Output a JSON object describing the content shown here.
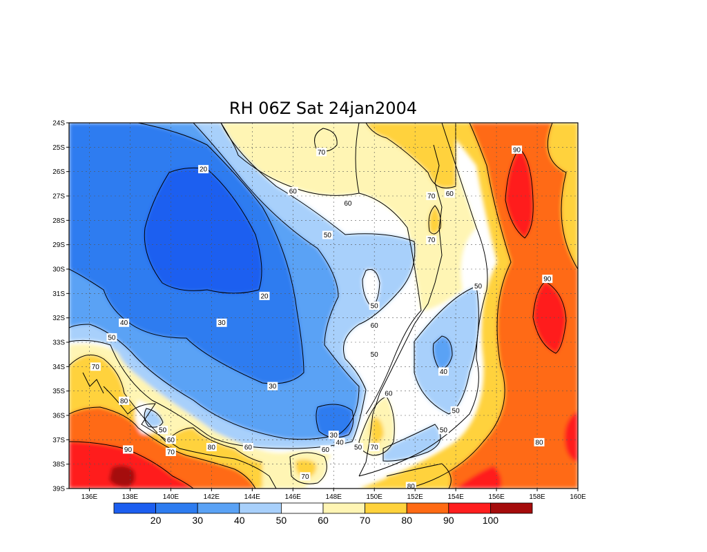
{
  "chart_data": {
    "type": "heatmap",
    "title": "RH 06Z Sat 24jan2004",
    "x_ticks": [
      "136E",
      "138E",
      "140E",
      "142E",
      "144E",
      "146E",
      "148E",
      "150E",
      "152E",
      "154E",
      "156E",
      "158E",
      "160E"
    ],
    "y_ticks": [
      "24S",
      "25S",
      "26S",
      "27S",
      "28S",
      "29S",
      "30S",
      "31S",
      "32S",
      "33S",
      "34S",
      "35S",
      "36S",
      "37S",
      "38S",
      "39S"
    ],
    "xlim": [
      135,
      160
    ],
    "ylim": [
      -39,
      -24
    ],
    "grid": true,
    "levels": [
      20,
      30,
      40,
      50,
      60,
      70,
      80,
      90,
      100
    ],
    "colorbar_labels": [
      "20",
      "30",
      "40",
      "50",
      "60",
      "70",
      "80",
      "90",
      "100"
    ],
    "bin_colors": [
      "#1c5ef0",
      "#2d7cf0",
      "#5aa2f5",
      "#a8d0fb",
      "#ffffff",
      "#fff5b4",
      "#ffd23c",
      "#ff6a14",
      "#ff1e1e",
      "#a50c0c"
    ],
    "contour_labels": [
      {
        "text": "20",
        "lon": 141.6,
        "lat": -25.9
      },
      {
        "text": "20",
        "lon": 144.6,
        "lat": -31.1
      },
      {
        "text": "30",
        "lon": 142.5,
        "lat": -32.2
      },
      {
        "text": "30",
        "lon": 145.0,
        "lat": -34.8
      },
      {
        "text": "30",
        "lon": 148.0,
        "lat": -36.8
      },
      {
        "text": "40",
        "lon": 137.7,
        "lat": -32.2
      },
      {
        "text": "40",
        "lon": 148.3,
        "lat": -37.1
      },
      {
        "text": "40",
        "lon": 153.4,
        "lat": -34.2
      },
      {
        "text": "50",
        "lon": 137.1,
        "lat": -32.8
      },
      {
        "text": "50",
        "lon": 147.7,
        "lat": -28.6
      },
      {
        "text": "50",
        "lon": 150.0,
        "lat": -31.5
      },
      {
        "text": "50",
        "lon": 150.0,
        "lat": -33.5
      },
      {
        "text": "50",
        "lon": 155.1,
        "lat": -30.7
      },
      {
        "text": "50",
        "lon": 154.0,
        "lat": -35.8
      },
      {
        "text": "50",
        "lon": 153.4,
        "lat": -36.6
      },
      {
        "text": "50",
        "lon": 139.6,
        "lat": -36.6
      },
      {
        "text": "50",
        "lon": 149.2,
        "lat": -37.3
      },
      {
        "text": "60",
        "lon": 146.0,
        "lat": -26.8
      },
      {
        "text": "60",
        "lon": 148.7,
        "lat": -27.3
      },
      {
        "text": "60",
        "lon": 153.7,
        "lat": -26.9
      },
      {
        "text": "60",
        "lon": 150.0,
        "lat": -32.3
      },
      {
        "text": "60",
        "lon": 150.7,
        "lat": -35.1
      },
      {
        "text": "60",
        "lon": 140.0,
        "lat": -37.0
      },
      {
        "text": "60",
        "lon": 143.8,
        "lat": -37.3
      },
      {
        "text": "60",
        "lon": 147.6,
        "lat": -37.4
      },
      {
        "text": "70",
        "lon": 147.4,
        "lat": -25.2
      },
      {
        "text": "70",
        "lon": 152.8,
        "lat": -27.0
      },
      {
        "text": "70",
        "lon": 152.8,
        "lat": -28.8
      },
      {
        "text": "70",
        "lon": 136.3,
        "lat": -34.0
      },
      {
        "text": "70",
        "lon": 140.0,
        "lat": -37.5
      },
      {
        "text": "70",
        "lon": 150.0,
        "lat": -37.3
      },
      {
        "text": "70",
        "lon": 146.6,
        "lat": -38.5
      },
      {
        "text": "80",
        "lon": 137.7,
        "lat": -35.4
      },
      {
        "text": "80",
        "lon": 142.0,
        "lat": -37.3
      },
      {
        "text": "80",
        "lon": 158.1,
        "lat": -37.1
      },
      {
        "text": "80",
        "lon": 151.8,
        "lat": -38.9
      },
      {
        "text": "90",
        "lon": 157.0,
        "lat": -25.1
      },
      {
        "text": "90",
        "lon": 158.5,
        "lat": -30.4
      },
      {
        "text": "90",
        "lon": 137.9,
        "lat": -37.4
      }
    ]
  }
}
